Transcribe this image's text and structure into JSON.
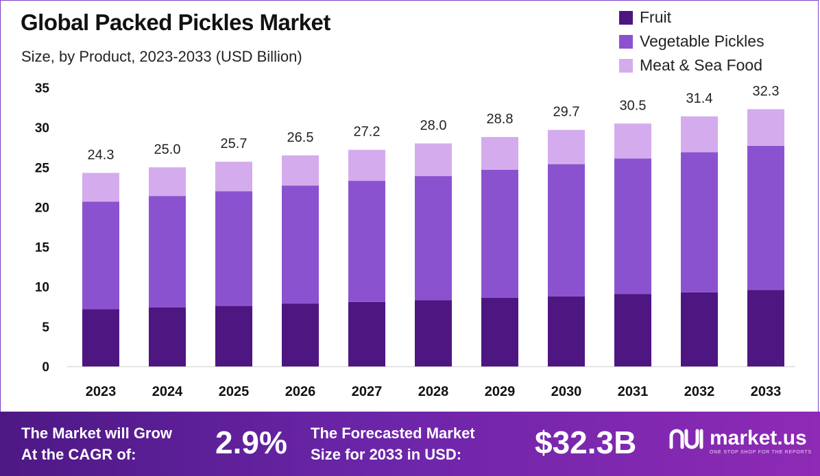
{
  "header": {
    "title": "Global Packed Pickles Market",
    "subtitle": "Size, by Product, 2023-2033 (USD Billion)"
  },
  "legend": [
    {
      "label": "Fruit",
      "color": "#4e1681"
    },
    {
      "label": "Vegetable Pickles",
      "color": "#8b52d0"
    },
    {
      "label": "Meat & Sea Food",
      "color": "#d4aced"
    }
  ],
  "chart_data": {
    "type": "bar",
    "stacked": true,
    "categories": [
      "2023",
      "2024",
      "2025",
      "2026",
      "2027",
      "2028",
      "2029",
      "2030",
      "2031",
      "2032",
      "2033"
    ],
    "series": [
      {
        "name": "Fruit",
        "color": "#4e1681",
        "values": [
          7.2,
          7.4,
          7.6,
          7.9,
          8.1,
          8.3,
          8.6,
          8.8,
          9.1,
          9.3,
          9.6
        ]
      },
      {
        "name": "Vegetable Pickles",
        "color": "#8b52d0",
        "values": [
          13.5,
          14.0,
          14.4,
          14.8,
          15.2,
          15.6,
          16.1,
          16.6,
          17.0,
          17.6,
          18.1
        ]
      },
      {
        "name": "Meat & Sea Food",
        "color": "#d4aced",
        "values": [
          3.6,
          3.6,
          3.7,
          3.8,
          3.9,
          4.1,
          4.1,
          4.3,
          4.4,
          4.5,
          4.6
        ]
      }
    ],
    "totals": [
      "24.3",
      "25.0",
      "25.7",
      "26.5",
      "27.2",
      "28.0",
      "28.8",
      "29.7",
      "30.5",
      "31.4",
      "32.3"
    ],
    "yticks": [
      "0",
      "5",
      "10",
      "15",
      "20",
      "25",
      "30",
      "35"
    ],
    "ylim": [
      0,
      35
    ],
    "grid": false,
    "legend_position": "top-right"
  },
  "footer": {
    "cagr_text_1": "The Market will Grow",
    "cagr_text_2": "At the CAGR of:",
    "cagr_value": "2.9%",
    "forecast_text_1": "The Forecasted Market",
    "forecast_text_2": "Size for 2033 in USD:",
    "forecast_value": "$32.3B",
    "brand_name": "market.us",
    "brand_tagline": "ONE STOP SHOP FOR THE REPORTS"
  }
}
